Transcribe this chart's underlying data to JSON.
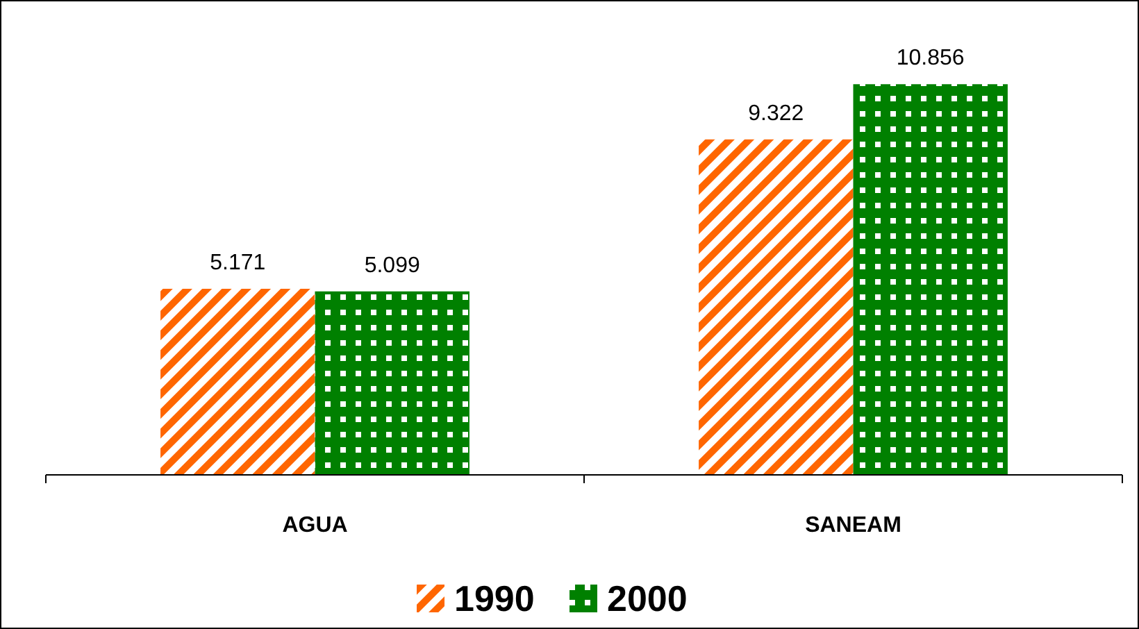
{
  "chart_data": {
    "type": "bar",
    "categories": [
      "AGUA",
      "SANEAM"
    ],
    "series": [
      {
        "name": "1990",
        "color": "#ff6600",
        "values": [
          5.171,
          9.322
        ]
      },
      {
        "name": "2000",
        "color": "#008000",
        "values": [
          5.099,
          10.856
        ]
      }
    ],
    "data_labels": true,
    "legend": "bottom"
  }
}
